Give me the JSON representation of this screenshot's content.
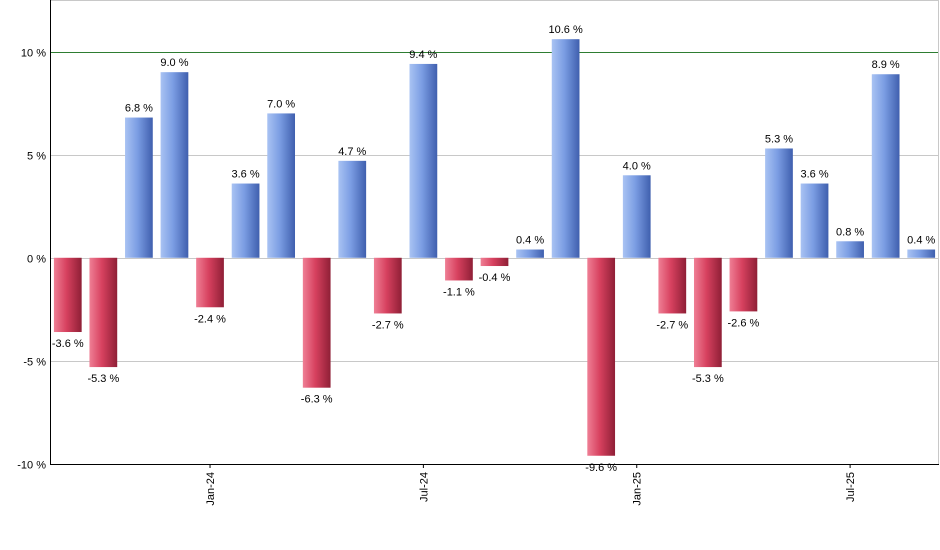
{
  "chart_data": {
    "type": "bar",
    "title": "",
    "xlabel": "",
    "ylabel": "",
    "ylim": [
      -10,
      12.5
    ],
    "yticks": [
      -10,
      -5,
      0,
      5,
      10
    ],
    "ytick_suffix": " %",
    "value_suffix": " %",
    "grid": true,
    "reference_line": 10,
    "x_tick_labels": [
      {
        "label": "Jan-24",
        "index": 4
      },
      {
        "label": "Jul-24",
        "index": 10
      },
      {
        "label": "Jan-25",
        "index": 16
      },
      {
        "label": "Jul-25",
        "index": 22
      }
    ],
    "values": [
      -3.6,
      -5.3,
      6.8,
      9.0,
      -2.4,
      3.6,
      7.0,
      -6.3,
      4.7,
      -2.7,
      9.4,
      -1.1,
      -0.4,
      0.4,
      10.6,
      -9.6,
      4.0,
      -2.7,
      -5.3,
      -2.6,
      5.3,
      3.6,
      0.8,
      8.9,
      0.4
    ],
    "colors": {
      "positive": "#7396de",
      "negative": "#d03a5a",
      "reference": "#2e7d32",
      "grid": "#c8c8c8",
      "axis": "#000000"
    }
  }
}
